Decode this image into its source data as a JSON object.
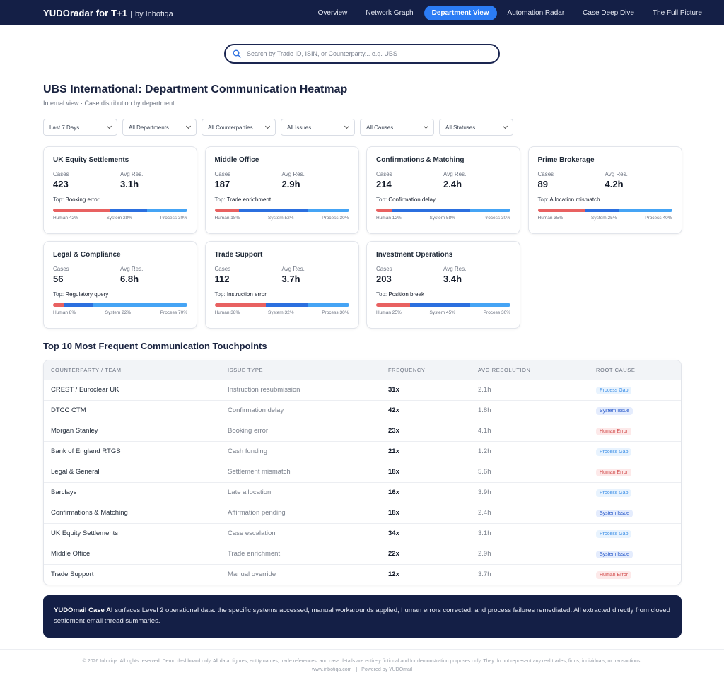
{
  "nav": {
    "brand_name": "YUDOradar for T+1",
    "brand_sep": "|",
    "brand_by": "by Inbotiqa",
    "links": [
      {
        "label": "Overview"
      },
      {
        "label": "Network Graph"
      },
      {
        "label": "Department View"
      },
      {
        "label": "Automation Radar"
      },
      {
        "label": "Case Deep Dive"
      },
      {
        "label": "The Full Picture"
      }
    ],
    "active_link": "Department View"
  },
  "search": {
    "icon": "search-icon",
    "placeholder": "Search by Trade ID, ISIN, or Counterparty... e.g. UBS",
    "value": ""
  },
  "header": {
    "title": "UBS International: Department Communication Heatmap",
    "subtitle": "Internal view · Case distribution by department"
  },
  "filters": [
    {
      "label": "Last 7 Days"
    },
    {
      "label": "All Departments"
    },
    {
      "label": "All Counterparties"
    },
    {
      "label": "All Issues"
    },
    {
      "label": "All Causes"
    },
    {
      "label": "All Statuses"
    }
  ],
  "card_labels": {
    "cases": "Cases",
    "avg_res": "Avg Res.",
    "top_prefix": "Top:",
    "human": "Human",
    "system": "System",
    "process": "Process"
  },
  "departments": [
    {
      "name": "UK Equity Settlements",
      "cases": "423",
      "avg_res": "3.1h",
      "top": "Booking error",
      "human": 42,
      "system": 28,
      "process": 30
    },
    {
      "name": "Middle Office",
      "cases": "187",
      "avg_res": "2.9h",
      "top": "Trade enrichment",
      "human": 18,
      "system": 52,
      "process": 30
    },
    {
      "name": "Confirmations & Matching",
      "cases": "214",
      "avg_res": "2.4h",
      "top": "Confirmation delay",
      "human": 12,
      "system": 58,
      "process": 30
    },
    {
      "name": "Prime Brokerage",
      "cases": "89",
      "avg_res": "4.2h",
      "top": "Allocation mismatch",
      "human": 35,
      "system": 25,
      "process": 40
    },
    {
      "name": "Legal & Compliance",
      "cases": "56",
      "avg_res": "6.8h",
      "top": "Regulatory query",
      "human": 8,
      "system": 22,
      "process": 70
    },
    {
      "name": "Trade Support",
      "cases": "112",
      "avg_res": "3.7h",
      "top": "Instruction error",
      "human": 38,
      "system": 32,
      "process": 30
    },
    {
      "name": "Investment Operations",
      "cases": "203",
      "avg_res": "3.4h",
      "top": "Position break",
      "human": 25,
      "system": 45,
      "process": 30
    }
  ],
  "table": {
    "title": "Top 10 Most Frequent Communication Touchpoints",
    "headers": [
      "COUNTERPARTY / TEAM",
      "ISSUE TYPE",
      "FREQUENCY",
      "AVG RESOLUTION",
      "ROOT CAUSE"
    ],
    "rows": [
      {
        "counterparty": "CREST / Euroclear UK",
        "issue": "Instruction resubmission",
        "frequency": "31x",
        "avg": "2.1h",
        "cause": "Process Gap",
        "kind": "process"
      },
      {
        "counterparty": "DTCC CTM",
        "issue": "Confirmation delay",
        "frequency": "42x",
        "avg": "1.8h",
        "cause": "System Issue",
        "kind": "system"
      },
      {
        "counterparty": "Morgan Stanley",
        "issue": "Booking error",
        "frequency": "23x",
        "avg": "4.1h",
        "cause": "Human Error",
        "kind": "human"
      },
      {
        "counterparty": "Bank of England RTGS",
        "issue": "Cash funding",
        "frequency": "21x",
        "avg": "1.2h",
        "cause": "Process Gap",
        "kind": "process"
      },
      {
        "counterparty": "Legal & General",
        "issue": "Settlement mismatch",
        "frequency": "18x",
        "avg": "5.6h",
        "cause": "Human Error",
        "kind": "human"
      },
      {
        "counterparty": "Barclays",
        "issue": "Late allocation",
        "frequency": "16x",
        "avg": "3.9h",
        "cause": "Process Gap",
        "kind": "process"
      },
      {
        "counterparty": "Confirmations & Matching",
        "issue": "Affirmation pending",
        "frequency": "18x",
        "avg": "2.4h",
        "cause": "System Issue",
        "kind": "system"
      },
      {
        "counterparty": "UK Equity Settlements",
        "issue": "Case escalation",
        "frequency": "34x",
        "avg": "3.1h",
        "cause": "Process Gap",
        "kind": "process"
      },
      {
        "counterparty": "Middle Office",
        "issue": "Trade enrichment",
        "frequency": "22x",
        "avg": "2.9h",
        "cause": "System Issue",
        "kind": "system"
      },
      {
        "counterparty": "Trade Support",
        "issue": "Manual override",
        "frequency": "12x",
        "avg": "3.7h",
        "cause": "Human Error",
        "kind": "human"
      }
    ]
  },
  "info": {
    "lead": "YUDOmail Case AI",
    "text": " surfaces Level 2 operational data: the specific systems accessed, manual workarounds applied, human errors corrected, and process failures remediated. All extracted directly from closed settlement email thread summaries."
  },
  "footer": {
    "disclaimer": "© 2026 Inbotiqa. All rights reserved. Demo dashboard only. All data, figures, entity names, trade references, and case details are entirely fictional and for demonstration purposes only. They do not represent any real trades, firms, individuals, or transactions.",
    "site": "www.inbotiqa.com",
    "sep": "|",
    "powered": "Powered by YUDOmail"
  },
  "colors": {
    "nav_bg": "#141f46",
    "accent": "#2b7cf5",
    "human": "#e86161",
    "system": "#2b6fdf",
    "process": "#45a4f5"
  }
}
